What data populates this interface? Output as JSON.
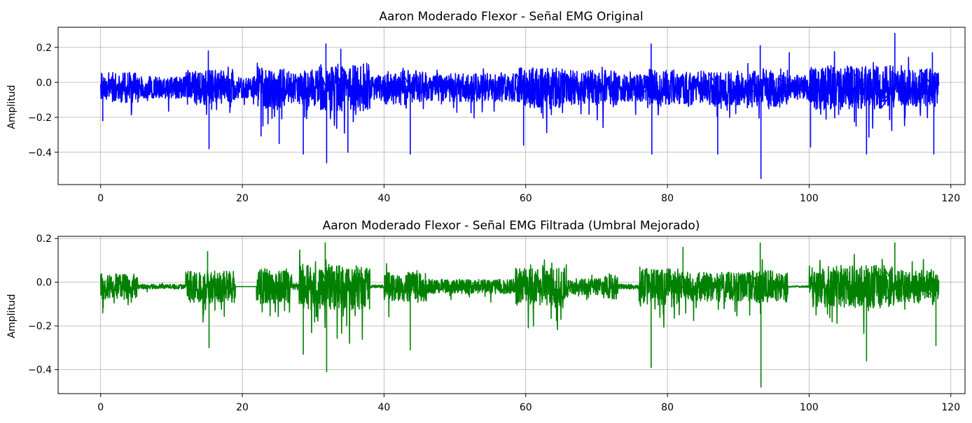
{
  "chart_data": [
    {
      "type": "line",
      "title": "Aaron Moderado Flexor - Señal EMG Original",
      "xlabel": "",
      "ylabel": "Amplitud",
      "xlim": [
        -6,
        122
      ],
      "ylim": [
        -0.585,
        0.315
      ],
      "xticks": [
        0,
        20,
        40,
        60,
        80,
        100,
        120
      ],
      "yticks": [
        -0.4,
        -0.2,
        0.0,
        0.2
      ],
      "ytick_labels": [
        "−0.4",
        "−0.2",
        "0.0",
        "0.2"
      ],
      "grid": true,
      "color": "#0000ff",
      "x_range": [
        0,
        118.3
      ],
      "baseline": -0.03,
      "spread": 0.09,
      "activity": [
        {
          "x": [
            0,
            5
          ],
          "level": 1.0
        },
        {
          "x": [
            5,
            12
          ],
          "level": 0.7
        },
        {
          "x": [
            12,
            19
          ],
          "level": 1.1
        },
        {
          "x": [
            19,
            22
          ],
          "level": 0.7
        },
        {
          "x": [
            22,
            26
          ],
          "level": 1.3
        },
        {
          "x": [
            26,
            28
          ],
          "level": 0.9
        },
        {
          "x": [
            28,
            31
          ],
          "level": 1.2
        },
        {
          "x": [
            31,
            38
          ],
          "level": 1.5
        },
        {
          "x": [
            38,
            40
          ],
          "level": 0.8
        },
        {
          "x": [
            40,
            46
          ],
          "level": 1.1
        },
        {
          "x": [
            46,
            59
          ],
          "level": 0.9
        },
        {
          "x": [
            59,
            66
          ],
          "level": 1.3
        },
        {
          "x": [
            66,
            73
          ],
          "level": 1.1
        },
        {
          "x": [
            73,
            77
          ],
          "level": 0.9
        },
        {
          "x": [
            77,
            81
          ],
          "level": 1.2
        },
        {
          "x": [
            81,
            92
          ],
          "level": 1.1
        },
        {
          "x": [
            92,
            97
          ],
          "level": 1.2
        },
        {
          "x": [
            97,
            100
          ],
          "level": 0.8
        },
        {
          "x": [
            100,
            112
          ],
          "level": 1.4
        },
        {
          "x": [
            112,
            118.3
          ],
          "level": 1.2
        }
      ],
      "peaks": [
        {
          "x": 0.3,
          "y": -0.22
        },
        {
          "x": 15.2,
          "y": 0.18
        },
        {
          "x": 15.3,
          "y": -0.38
        },
        {
          "x": 25.2,
          "y": -0.35
        },
        {
          "x": 28.6,
          "y": -0.41
        },
        {
          "x": 31.8,
          "y": 0.22
        },
        {
          "x": 31.9,
          "y": -0.46
        },
        {
          "x": 33.9,
          "y": 0.19
        },
        {
          "x": 34.9,
          "y": -0.4
        },
        {
          "x": 43.7,
          "y": -0.41
        },
        {
          "x": 59.7,
          "y": -0.36
        },
        {
          "x": 77.7,
          "y": 0.22
        },
        {
          "x": 77.8,
          "y": -0.41
        },
        {
          "x": 87.1,
          "y": -0.41
        },
        {
          "x": 93.1,
          "y": 0.21
        },
        {
          "x": 93.2,
          "y": -0.55
        },
        {
          "x": 97.2,
          "y": 0.17
        },
        {
          "x": 100.2,
          "y": -0.37
        },
        {
          "x": 108.1,
          "y": -0.41
        },
        {
          "x": 112.1,
          "y": 0.28
        },
        {
          "x": 117.6,
          "y": -0.41
        },
        {
          "x": 117.4,
          "y": 0.17
        }
      ]
    },
    {
      "type": "line",
      "title": "Aaron Moderado Flexor - Señal EMG Filtrada (Umbral Mejorado)",
      "xlabel": "",
      "ylabel": "Amplitud",
      "xlim": [
        -6,
        122
      ],
      "ylim": [
        -0.51,
        0.21
      ],
      "xticks": [
        0,
        20,
        40,
        60,
        80,
        100,
        120
      ],
      "yticks": [
        -0.4,
        -0.2,
        0.0,
        0.2
      ],
      "ytick_labels": [
        "−0.4",
        "−0.2",
        "0.0",
        "0.2"
      ],
      "grid": true,
      "color": "#008000",
      "x_range": [
        0,
        118.3
      ],
      "baseline": -0.02,
      "spread": 0.075,
      "activity": [
        {
          "x": [
            0,
            5.2
          ],
          "level": 0.8
        },
        {
          "x": [
            5.2,
            12
          ],
          "level": 0.15
        },
        {
          "x": [
            12,
            19
          ],
          "level": 1.0
        },
        {
          "x": [
            19,
            22
          ],
          "level": 0.0
        },
        {
          "x": [
            22,
            27
          ],
          "level": 1.1
        },
        {
          "x": [
            27,
            28
          ],
          "level": 0.2
        },
        {
          "x": [
            28,
            38
          ],
          "level": 1.4
        },
        {
          "x": [
            38,
            40
          ],
          "level": 0.1
        },
        {
          "x": [
            40,
            46
          ],
          "level": 0.9
        },
        {
          "x": [
            46,
            58.5
          ],
          "level": 0.45
        },
        {
          "x": [
            58.5,
            66
          ],
          "level": 1.2
        },
        {
          "x": [
            66,
            71
          ],
          "level": 0.5
        },
        {
          "x": [
            71,
            73
          ],
          "level": 0.8
        },
        {
          "x": [
            73,
            76
          ],
          "level": 0.15
        },
        {
          "x": [
            76,
            82
          ],
          "level": 1.1
        },
        {
          "x": [
            82,
            92
          ],
          "level": 0.9
        },
        {
          "x": [
            92,
            97
          ],
          "level": 1.0
        },
        {
          "x": [
            97,
            100
          ],
          "level": 0.05
        },
        {
          "x": [
            100,
            112
          ],
          "level": 1.3
        },
        {
          "x": [
            112,
            118.3
          ],
          "level": 1.0
        }
      ],
      "peaks": [
        {
          "x": 0.3,
          "y": -0.14
        },
        {
          "x": 15.1,
          "y": 0.14
        },
        {
          "x": 15.3,
          "y": -0.3
        },
        {
          "x": 28.6,
          "y": -0.33
        },
        {
          "x": 31.7,
          "y": 0.18
        },
        {
          "x": 31.9,
          "y": -0.41
        },
        {
          "x": 43.7,
          "y": -0.31
        },
        {
          "x": 77.7,
          "y": -0.39
        },
        {
          "x": 82.2,
          "y": 0.16
        },
        {
          "x": 93.1,
          "y": 0.18
        },
        {
          "x": 93.2,
          "y": -0.48
        },
        {
          "x": 108.1,
          "y": -0.36
        },
        {
          "x": 112.1,
          "y": 0.18
        },
        {
          "x": 117.9,
          "y": -0.29
        }
      ]
    }
  ]
}
